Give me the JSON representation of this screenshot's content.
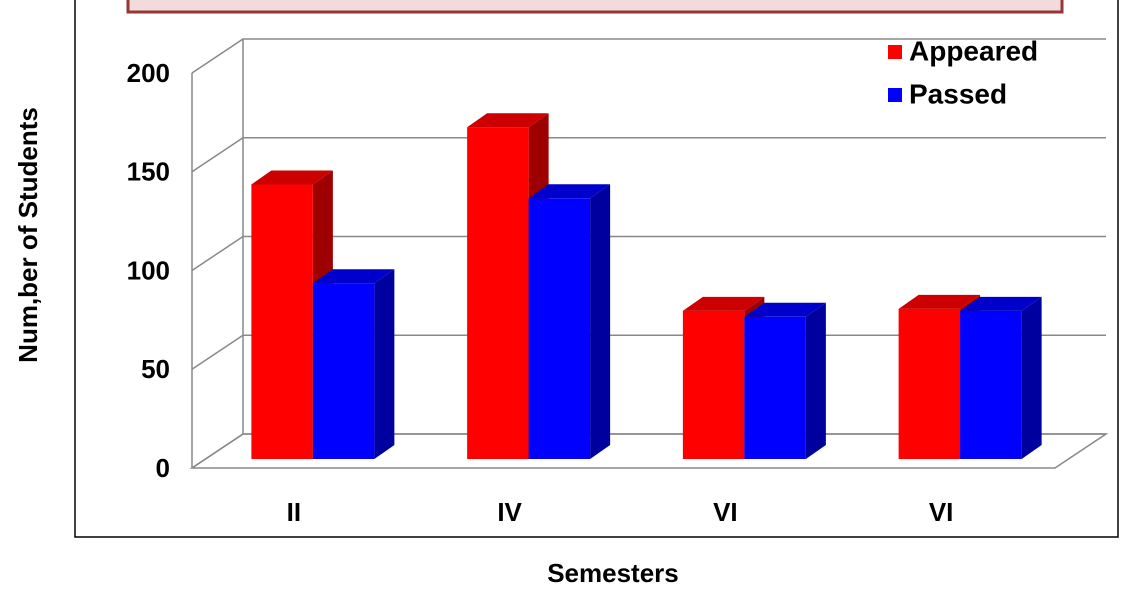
{
  "chart_data": {
    "type": "bar3d",
    "x_label": "Semesters",
    "y_label": "Num,ber of Students",
    "categories": [
      "II",
      "IV",
      "VI",
      "VI"
    ],
    "series": [
      {
        "name": "Appeared",
        "color": "#ff0000",
        "values": [
          139,
          168,
          75,
          76
        ]
      },
      {
        "name": "Passed",
        "color": "#0000ff",
        "values": [
          89,
          132,
          72,
          75
        ]
      }
    ],
    "ylim": [
      0,
      200
    ],
    "yticks": [
      0,
      50,
      100,
      150,
      200
    ],
    "grid": true,
    "legend": "upper right"
  }
}
